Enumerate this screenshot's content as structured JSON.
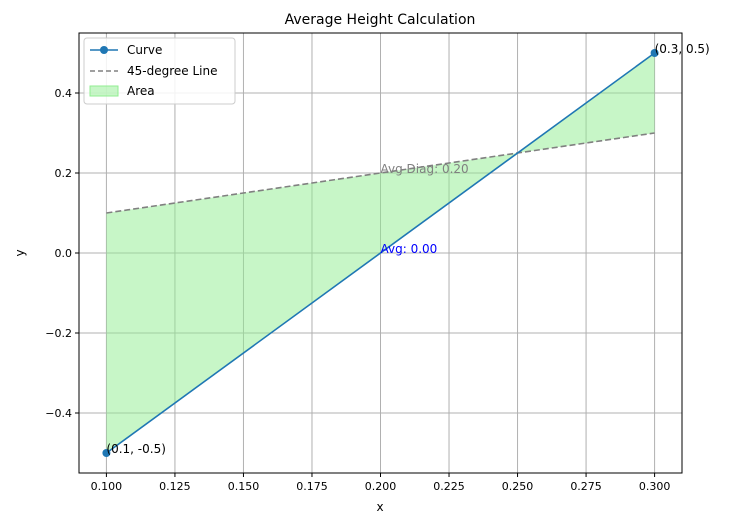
{
  "chart_data": {
    "type": "line",
    "title": "Average Height Calculation",
    "xlabel": "x",
    "ylabel": "y",
    "xlim": [
      0.09,
      0.31
    ],
    "ylim": [
      -0.55,
      0.55
    ],
    "x_ticks": [
      "0.100",
      "0.125",
      "0.150",
      "0.175",
      "0.200",
      "0.225",
      "0.250",
      "0.275",
      "0.300"
    ],
    "x_tick_values": [
      0.1,
      0.125,
      0.15,
      0.175,
      0.2,
      0.225,
      0.25,
      0.275,
      0.3
    ],
    "y_ticks": [
      "−0.4",
      "−0.2",
      "0.0",
      "0.2",
      "0.4"
    ],
    "y_tick_values": [
      -0.4,
      -0.2,
      0.0,
      0.2,
      0.4
    ],
    "grid": true,
    "legend_position": "top-left",
    "series": [
      {
        "name": "Curve",
        "x": [
          0.1,
          0.3
        ],
        "y": [
          -0.5,
          0.5
        ],
        "color": "#1f77b4",
        "style": "solid-markers"
      },
      {
        "name": "45-degree Line",
        "x": [
          0.1,
          0.3
        ],
        "y": [
          0.1,
          0.3
        ],
        "color": "#808080",
        "style": "dashed"
      }
    ],
    "area": {
      "name": "Area",
      "color": "#90ee90"
    },
    "annotations": [
      {
        "text": "(0.1, -0.5)",
        "x": 0.1,
        "y": -0.5,
        "color": "#000000"
      },
      {
        "text": "(0.3, 0.5)",
        "x": 0.3,
        "y": 0.5,
        "color": "#000000"
      },
      {
        "text": "Avg: 0.00",
        "x": 0.2,
        "y": 0.0,
        "color": "#0000ff"
      },
      {
        "text": "Avg Diag: 0.20",
        "x": 0.2,
        "y": 0.2,
        "color": "#808080"
      }
    ]
  }
}
